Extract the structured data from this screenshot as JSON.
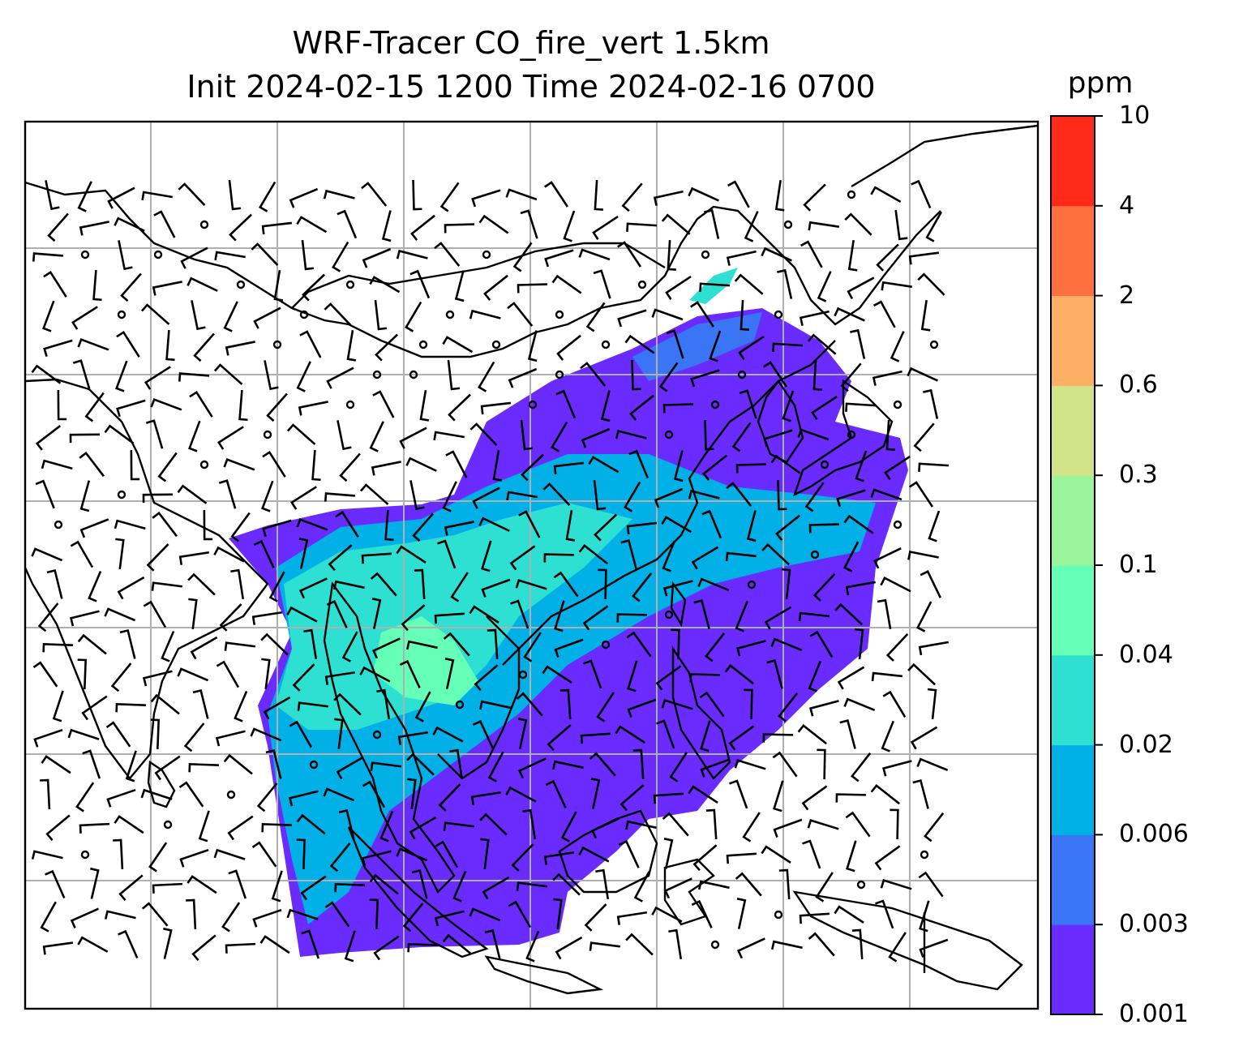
{
  "title_line1": "WRF-Tracer CO_fire_vert 1.5km",
  "title_line2": "Init 2024-02-15 1200 Time 2024-02-16 0700",
  "colorbar": {
    "unit": "ppm",
    "levels": [
      "0.001",
      "0.003",
      "0.006",
      "0.02",
      "0.04",
      "0.1",
      "0.3",
      "0.6",
      "2",
      "4",
      "10"
    ],
    "colors": [
      "#6a2bff",
      "#3a75f5",
      "#00b0e6",
      "#2ee0d2",
      "#66ffb8",
      "#9af59a",
      "#d2e38a",
      "#fdb065",
      "#ff7040",
      "#ff2a1a"
    ]
  },
  "map": {
    "frame_color": "#000000",
    "grid_color": "#b0b0b0",
    "coastline_color": "#000000",
    "barb_color": "#000000"
  }
}
